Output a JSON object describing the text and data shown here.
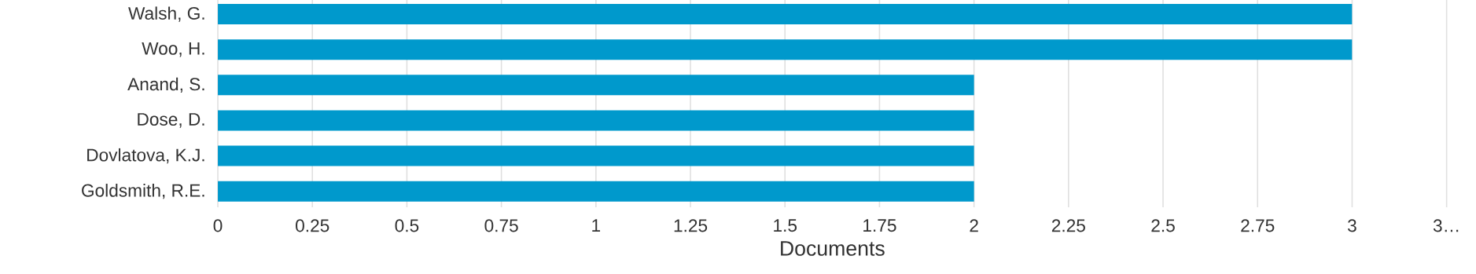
{
  "chart_data": {
    "type": "bar",
    "orientation": "horizontal",
    "xlabel": "Documents",
    "categories": [
      "Walsh, G.",
      "Woo, H.",
      "Anand, S.",
      "Dose, D.",
      "Dovlatova, K.J.",
      "Goldsmith, R.E."
    ],
    "values": [
      3,
      3,
      2,
      2,
      2,
      2
    ],
    "color": "#0099cc",
    "xlim": [
      0,
      3.25
    ],
    "xticks": [
      0,
      0.25,
      0.5,
      0.75,
      1,
      1.25,
      1.5,
      1.75,
      2,
      2.25,
      2.5,
      2.75,
      3,
      {
        "value": 3.25,
        "label": "3…"
      }
    ],
    "grid": "x"
  }
}
